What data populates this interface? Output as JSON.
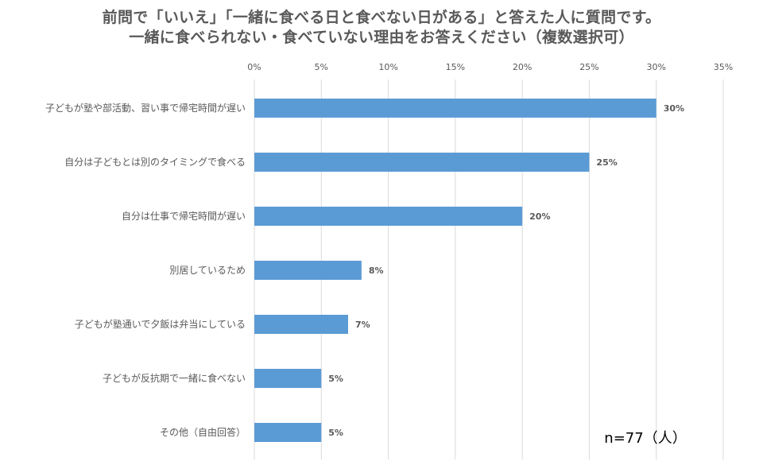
{
  "title_lines": [
    "前問で「いいえ」「一緒に食べる日と食べない日がある」と答えた人に質問です。",
    "一緒に食べられない・食べていない理由をお答えください（複数選択可）"
  ],
  "sample_note": "n=77（人）",
  "colors": {
    "bar": "#5B9BD5",
    "grid": "#D9D9D9",
    "text": "#595959",
    "note": "#000000"
  },
  "chart_data": {
    "type": "bar",
    "orientation": "horizontal",
    "title": "前問で「いいえ」「一緒に食べる日と食べない日がある」と答えた人に質問です。 一緒に食べられない・食べていない理由をお答えください（複数選択可）",
    "categories": [
      "子どもが塾や部活動、習い事で帰宅時間が遅い",
      "自分は子どもとは別のタイミングで食べる",
      "自分は仕事で帰宅時間が遅い",
      "別居しているため",
      "子どもが塾通いで夕飯は弁当にしている",
      "子どもが反抗期で一緒に食べない",
      "その他（自由回答）"
    ],
    "values": [
      30,
      25,
      20,
      8,
      7,
      5,
      5
    ],
    "value_labels": [
      "30%",
      "25%",
      "20%",
      "8%",
      "7%",
      "5%",
      "5%"
    ],
    "xlim": [
      0,
      35
    ],
    "x_ticks": [
      0,
      5,
      10,
      15,
      20,
      25,
      30,
      35
    ],
    "x_tick_labels": [
      "0%",
      "5%",
      "10%",
      "15%",
      "20%",
      "25%",
      "30%",
      "35%"
    ],
    "x_axis_position": "top",
    "grid": true,
    "legend": "none"
  }
}
